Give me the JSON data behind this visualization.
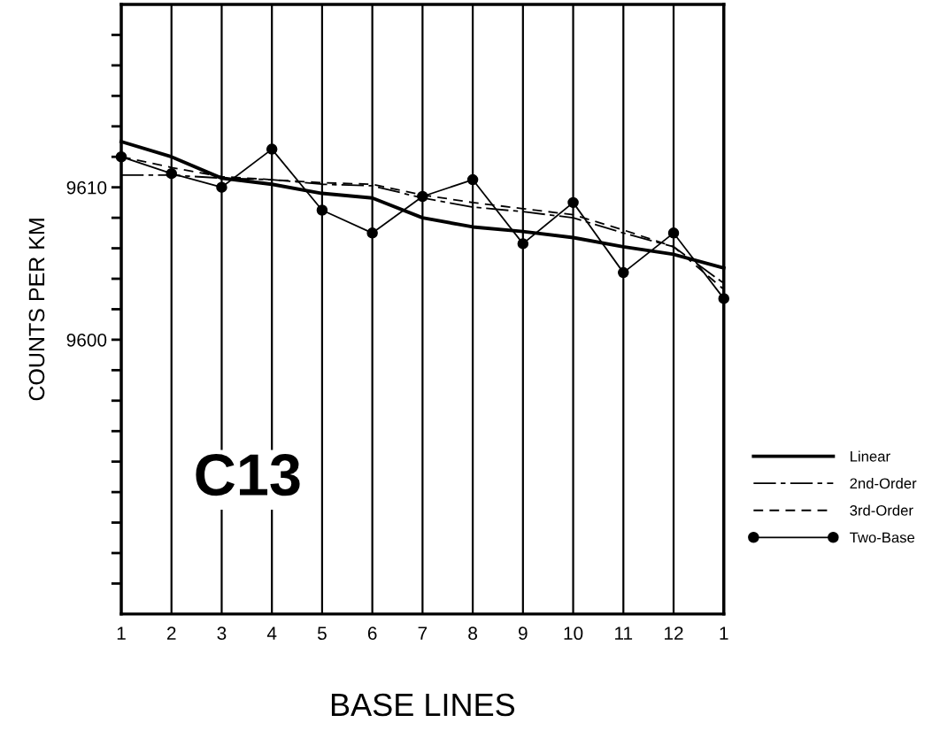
{
  "chart_data": {
    "type": "line",
    "xlabel": "BASE LINES",
    "ylabel": "COUNTS PER KM",
    "annotations": [
      "C13"
    ],
    "categories": [
      "1",
      "2",
      "3",
      "4",
      "5",
      "6",
      "7",
      "8",
      "9",
      "10",
      "11",
      "12",
      "1"
    ],
    "ylim": [
      9582,
      9622
    ],
    "yticks": [
      {
        "value": 9584,
        "label": null
      },
      {
        "value": 9586,
        "label": null
      },
      {
        "value": 9588,
        "label": null
      },
      {
        "value": 9590,
        "label": null
      },
      {
        "value": 9592,
        "label": null
      },
      {
        "value": 9594,
        "label": null
      },
      {
        "value": 9596,
        "label": null
      },
      {
        "value": 9598,
        "label": null
      },
      9600,
      {
        "value": 9602,
        "label": null
      },
      {
        "value": 9604,
        "label": null
      },
      {
        "value": 9606,
        "label": null
      },
      {
        "value": 9608,
        "label": null
      },
      9610,
      {
        "value": 9612,
        "label": null
      },
      {
        "value": 9614,
        "label": null
      },
      {
        "value": 9616,
        "label": null
      },
      {
        "value": 9618,
        "label": null
      },
      {
        "value": 9620,
        "label": null
      }
    ],
    "grid": "x",
    "legend": "right",
    "series": [
      {
        "name": "Linear",
        "color": "#000000",
        "line_style": "solid",
        "marker": "none",
        "values": [
          9613.0,
          9612.0,
          9610.6,
          9610.2,
          9609.6,
          9609.3,
          9608.0,
          9607.4,
          9607.1,
          9606.7,
          9606.1,
          9605.6,
          9604.7
        ]
      },
      {
        "name": "2nd-Order",
        "color": "#000000",
        "line_style": "dashdot",
        "marker": "none",
        "values": [
          9610.8,
          9610.8,
          9610.6,
          9610.5,
          9610.2,
          9610.1,
          9609.3,
          9608.7,
          9608.4,
          9608.0,
          9607.0,
          9606.1,
          9603.7
        ]
      },
      {
        "name": "3rd-Order",
        "color": "#000000",
        "line_style": "dashed",
        "marker": "none",
        "values": [
          9612.0,
          9611.3,
          9610.7,
          9610.5,
          9610.3,
          9610.2,
          9609.5,
          9609.0,
          9608.6,
          9608.2,
          9607.2,
          9606.1,
          9603.3
        ]
      },
      {
        "name": "Two-Base",
        "color": "#000000",
        "line_style": "solid",
        "marker": "circle",
        "values": [
          9612.0,
          9610.9,
          9610.0,
          9612.5,
          9608.5,
          9607.0,
          9609.4,
          9610.5,
          9606.3,
          9609.0,
          9604.4,
          9607.0,
          9602.7
        ]
      }
    ]
  }
}
